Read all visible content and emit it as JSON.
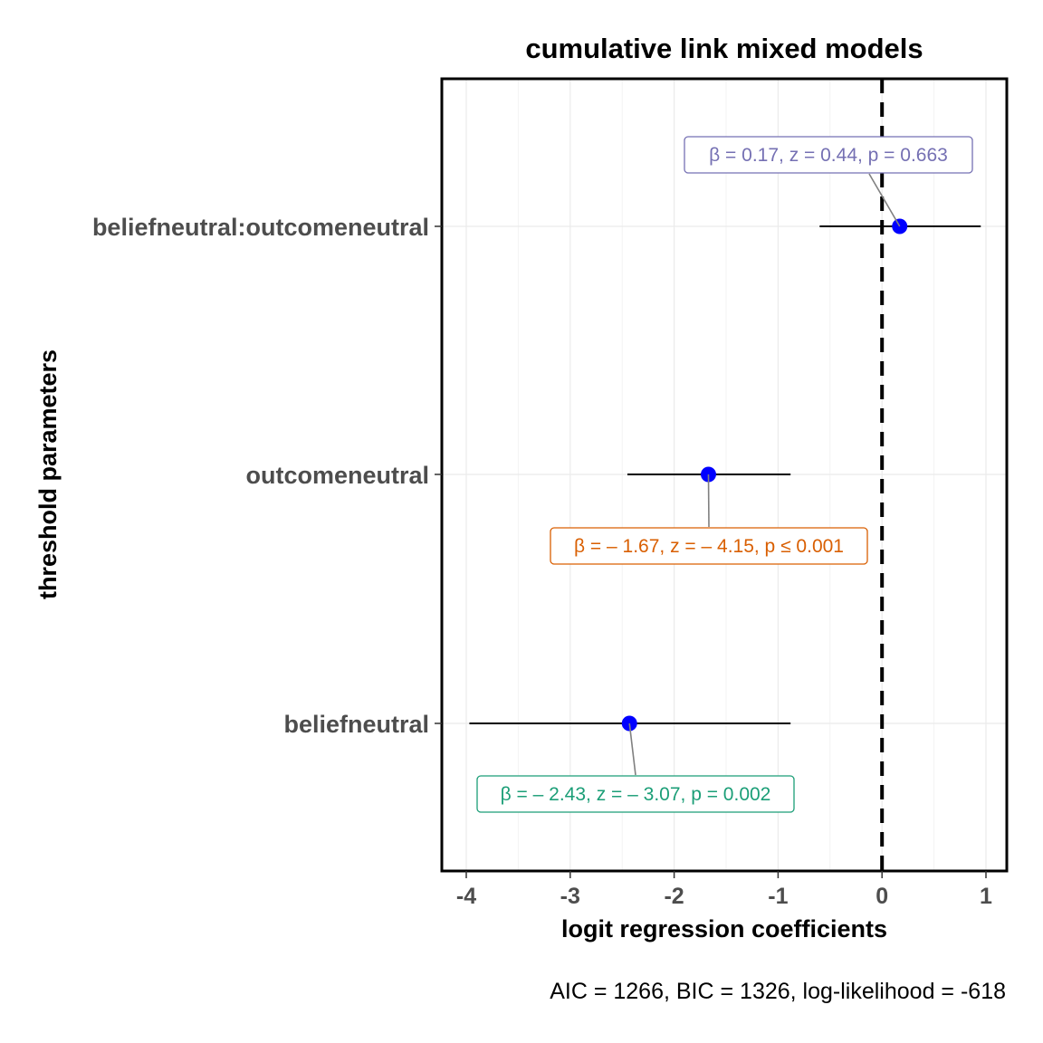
{
  "chart_data": {
    "type": "scatter",
    "title": "cumulative link mixed models",
    "xlabel": "logit regression coefficients",
    "ylabel": "threshold parameters",
    "caption": "AIC = 1266, BIC = 1326, log-likelihood = -618",
    "xlim": [
      -4.25,
      1.2
    ],
    "xticks": [
      -4,
      -3,
      -2,
      -1,
      0,
      1
    ],
    "xtick_labels": [
      "-4",
      "-3",
      "-2",
      "-1",
      "0",
      "1"
    ],
    "grid": true,
    "reference_line": 0,
    "point_color": "#0000ff",
    "terms": [
      {
        "label": "beliefneutral:outcomeneutral",
        "estimate": 0.17,
        "ci_low": -0.6,
        "ci_high": 0.95,
        "annotation": "β = 0.17,  z = 0.44,  p = 0.663",
        "annotation_color": "#7570b3"
      },
      {
        "label": "outcomeneutral",
        "estimate": -1.67,
        "ci_low": -2.45,
        "ci_high": -0.88,
        "annotation": "β = – 1.67,  z = – 4.15,  p ≤ 0.001",
        "annotation_color": "#d95f02"
      },
      {
        "label": "beliefneutral",
        "estimate": -2.43,
        "ci_low": -3.97,
        "ci_high": -0.88,
        "annotation": "β = – 2.43,  z = – 3.07,  p = 0.002",
        "annotation_color": "#1b9e77"
      }
    ]
  }
}
